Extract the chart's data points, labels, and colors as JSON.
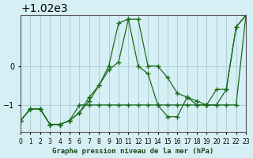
{
  "title": "Graphe pression niveau de la mer (hPa)",
  "bg_color": "#d6eff5",
  "grid_color": "#b0cfd8",
  "line_color": "#1a6b1a",
  "xlim": [
    0,
    23
  ],
  "ylim": [
    1018.3,
    1021.3
  ],
  "yticks": [
    1019,
    1020
  ],
  "xticks": [
    0,
    1,
    2,
    3,
    4,
    5,
    6,
    7,
    8,
    9,
    10,
    11,
    12,
    13,
    14,
    15,
    16,
    17,
    18,
    19,
    20,
    21,
    22,
    23
  ],
  "series": [
    [
      1018.6,
      1018.9,
      1018.9,
      1018.5,
      1018.5,
      1018.6,
      1018.8,
      1019.1,
      1019.5,
      1019.9,
      1020.1,
      1021.2,
      1021.2,
      1020.0,
      1020.0,
      1019.7,
      1019.3,
      1019.2,
      1019.1,
      1019.0,
      1019.4,
      1019.4,
      1021.0,
      1021.3
    ],
    [
      1018.6,
      1018.9,
      1018.9,
      1018.5,
      1018.5,
      1018.6,
      1019.0,
      1019.0,
      1019.0,
      1019.0,
      1019.0,
      1019.0,
      1019.0,
      1019.0,
      1019.0,
      1019.0,
      1019.0,
      1019.0,
      1019.0,
      1019.0,
      1019.0,
      1019.0,
      1019.0,
      1021.3
    ],
    [
      1018.6,
      1018.9,
      1018.9,
      1018.5,
      1018.5,
      1018.6,
      1018.8,
      1019.2,
      1019.5,
      1020.0,
      1021.1,
      1021.2,
      1020.0,
      1019.8,
      1019.0,
      1018.7,
      1018.7,
      1019.2,
      1019.0,
      1019.0,
      1019.0,
      1019.4,
      1021.0,
      1021.3
    ]
  ]
}
